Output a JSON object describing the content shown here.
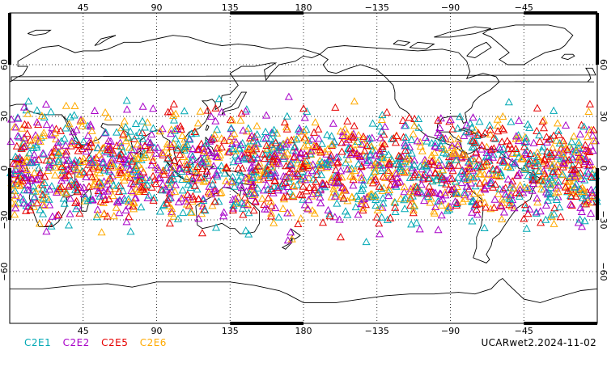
{
  "map": {
    "projection": "equirectangular",
    "lon_range": [
      0,
      360
    ],
    "lat_range": [
      -90,
      90
    ],
    "top_lon_labels": [
      "45",
      "90",
      "135",
      "180",
      "−135",
      "−90",
      "−45"
    ],
    "bottom_lon_labels": [
      "45",
      "90",
      "135",
      "180",
      "−135",
      "−90",
      "−45"
    ],
    "lon_label_values": [
      45,
      90,
      135,
      180,
      225,
      270,
      315
    ],
    "left_lat_labels": [
      "60",
      "30",
      "0",
      "−30",
      "−60"
    ],
    "right_lat_labels": [
      "60",
      "30",
      "0",
      "−30",
      "−60"
    ],
    "lat_label_values": [
      60,
      30,
      0,
      -30,
      -60
    ],
    "gridlines": "dotted",
    "coastline_color": "#000000"
  },
  "legend": {
    "items": [
      {
        "label": "C2E1",
        "color": "#00a8b4"
      },
      {
        "label": "C2E2",
        "color": "#a800c8"
      },
      {
        "label": "C2E5",
        "color": "#e60000"
      },
      {
        "label": "C2E6",
        "color": "#ffaa00"
      }
    ]
  },
  "stamp": "UCARwet2.2024-11-02",
  "observations": {
    "marker": "open-triangle",
    "lat_extent": [
      -45,
      45
    ],
    "lon_extent": [
      0,
      360
    ]
  }
}
